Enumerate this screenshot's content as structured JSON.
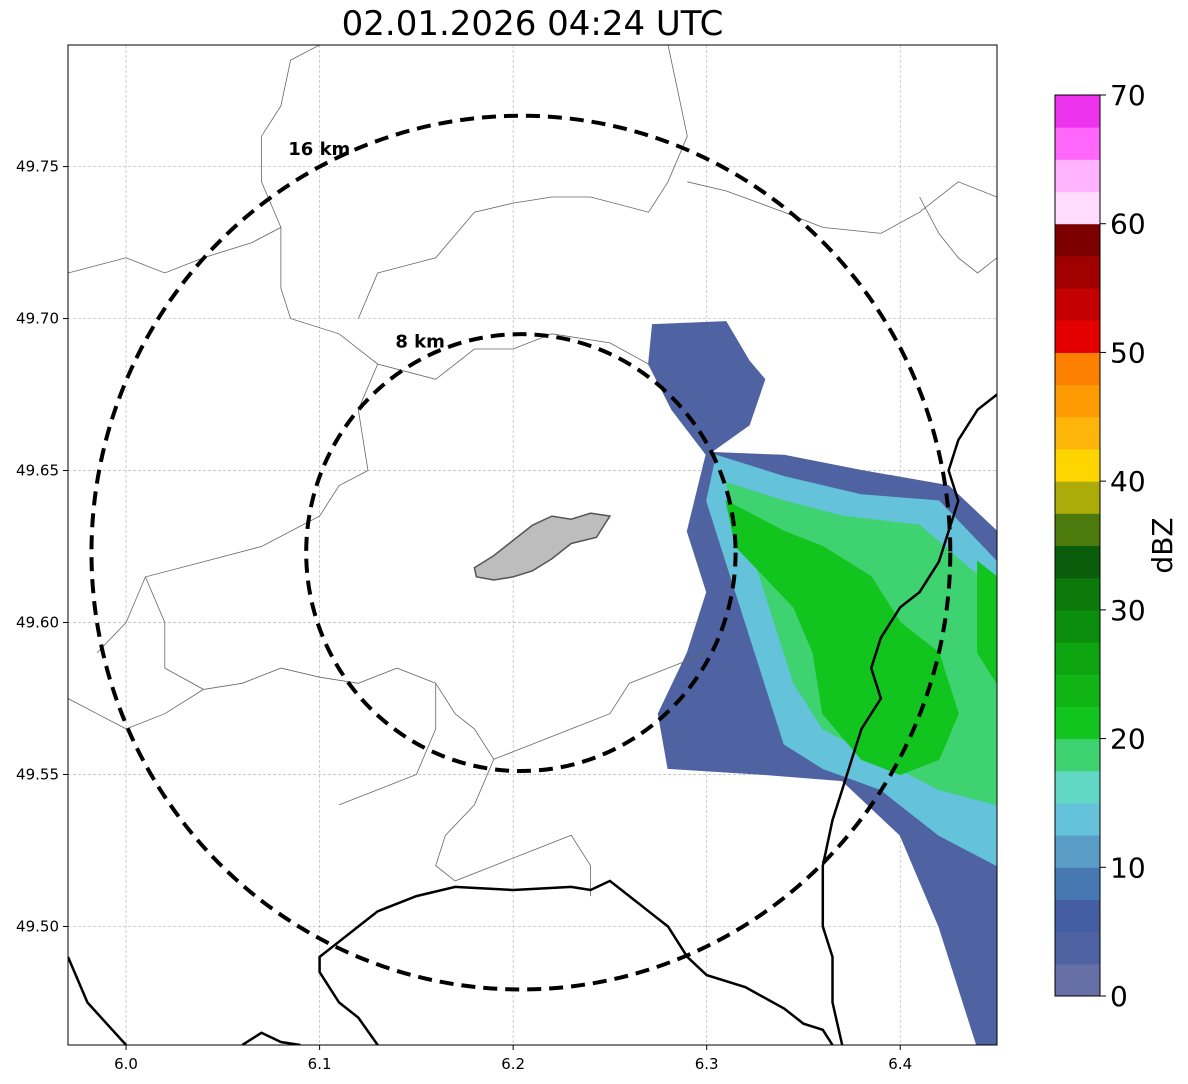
{
  "title": "02.01.2026 04:24 UTC",
  "map": {
    "lon_range": [
      5.97,
      6.45
    ],
    "lat_range": [
      49.461,
      49.79
    ],
    "x_ticks": [
      6.0,
      6.1,
      6.2,
      6.3,
      6.4
    ],
    "x_tick_labels": [
      "6.0",
      "6.1",
      "6.2",
      "6.3",
      "6.4"
    ],
    "y_ticks": [
      49.5,
      49.55,
      49.6,
      49.65,
      49.7,
      49.75
    ],
    "y_tick_labels": [
      "49.50",
      "49.55",
      "49.60",
      "49.65",
      "49.70",
      "49.75"
    ],
    "grid": true,
    "radar_center": [
      6.204,
      49.623
    ],
    "range_rings": [
      {
        "radius_km": 8,
        "label": "8 km"
      },
      {
        "radius_km": 16,
        "label": "16 km"
      }
    ]
  },
  "colorbar": {
    "label": "dBZ",
    "ticks": [
      0,
      10,
      20,
      30,
      40,
      50,
      60,
      70
    ],
    "tick_labels": [
      "0",
      "10",
      "20",
      "30",
      "40",
      "50",
      "60",
      "70"
    ],
    "range": [
      0,
      70
    ],
    "colors": [
      "#6670a6",
      "#4f63a2",
      "#435ea2",
      "#4878b2",
      "#5a9ec8",
      "#64c2da",
      "#60d8c4",
      "#3ed270",
      "#12c41e",
      "#10b414",
      "#0da50f",
      "#0b8e0d",
      "#0b7a0b",
      "#0a5d0a",
      "#4d7a0c",
      "#abab09",
      "#ffd500",
      "#fdb509",
      "#fd9a04",
      "#fd7f00",
      "#e50000",
      "#c50000",
      "#a00000",
      "#7d0000",
      "#ffdbfd",
      "#ffb3fd",
      "#ff66f9",
      "#ee33ee"
    ]
  },
  "echo_regions": [
    {
      "name": "north lobe",
      "dbz": 4,
      "poly": [
        [
          6.272,
          49.698
        ],
        [
          6.31,
          49.699
        ],
        [
          6.322,
          49.686
        ],
        [
          6.33,
          49.68
        ],
        [
          6.322,
          49.665
        ],
        [
          6.3,
          49.655
        ],
        [
          6.282,
          49.67
        ],
        [
          6.27,
          49.685
        ]
      ]
    },
    {
      "name": "main band",
      "dbz": 4,
      "poly": [
        [
          6.3,
          49.656
        ],
        [
          6.34,
          49.655
        ],
        [
          6.38,
          49.65
        ],
        [
          6.425,
          49.645
        ],
        [
          6.45,
          49.63
        ],
        [
          6.45,
          49.44
        ],
        [
          6.42,
          49.5
        ],
        [
          6.4,
          49.53
        ],
        [
          6.37,
          49.548
        ],
        [
          6.33,
          49.55
        ],
        [
          6.28,
          49.552
        ],
        [
          6.275,
          49.57
        ],
        [
          6.29,
          49.59
        ],
        [
          6.3,
          49.61
        ],
        [
          6.29,
          49.63
        ]
      ]
    },
    {
      "name": "main band",
      "dbz": 13,
      "poly": [
        [
          6.305,
          49.655
        ],
        [
          6.34,
          49.648
        ],
        [
          6.38,
          49.642
        ],
        [
          6.42,
          49.64
        ],
        [
          6.45,
          49.62
        ],
        [
          6.45,
          49.52
        ],
        [
          6.42,
          49.53
        ],
        [
          6.39,
          49.545
        ],
        [
          6.36,
          49.552
        ],
        [
          6.34,
          49.56
        ],
        [
          6.33,
          49.58
        ],
        [
          6.32,
          49.6
        ],
        [
          6.31,
          49.62
        ],
        [
          6.3,
          49.64
        ]
      ]
    },
    {
      "name": "main band",
      "dbz": 18,
      "poly": [
        [
          6.31,
          49.646
        ],
        [
          6.34,
          49.64
        ],
        [
          6.37,
          49.635
        ],
        [
          6.41,
          49.632
        ],
        [
          6.45,
          49.61
        ],
        [
          6.45,
          49.54
        ],
        [
          6.42,
          49.545
        ],
        [
          6.39,
          49.555
        ],
        [
          6.36,
          49.565
        ],
        [
          6.345,
          49.58
        ],
        [
          6.335,
          49.6
        ],
        [
          6.325,
          49.62
        ],
        [
          6.315,
          49.635
        ]
      ]
    },
    {
      "name": "main band",
      "dbz": 22,
      "poly": [
        [
          6.31,
          49.64
        ],
        [
          6.34,
          49.63
        ],
        [
          6.36,
          49.625
        ],
        [
          6.385,
          49.615
        ],
        [
          6.4,
          49.6
        ],
        [
          6.42,
          49.59
        ],
        [
          6.43,
          49.57
        ],
        [
          6.42,
          49.555
        ],
        [
          6.4,
          49.55
        ],
        [
          6.38,
          49.555
        ],
        [
          6.36,
          49.57
        ],
        [
          6.355,
          49.59
        ],
        [
          6.345,
          49.605
        ],
        [
          6.33,
          49.615
        ],
        [
          6.315,
          49.625
        ]
      ]
    },
    {
      "name": "east edge",
      "dbz": 20,
      "poly": [
        [
          6.44,
          49.62
        ],
        [
          6.45,
          49.615
        ],
        [
          6.45,
          49.58
        ],
        [
          6.44,
          49.59
        ]
      ]
    },
    {
      "name": "south tail",
      "dbz": 4,
      "poly": [
        [
          6.44,
          49.5
        ],
        [
          6.45,
          49.5
        ],
        [
          6.45,
          49.47
        ],
        [
          6.44,
          49.475
        ]
      ]
    }
  ],
  "city_shape": [
    [
      6.18,
      49.618
    ],
    [
      6.19,
      49.622
    ],
    [
      6.2,
      49.627
    ],
    [
      6.21,
      49.632
    ],
    [
      6.22,
      49.635
    ],
    [
      6.23,
      49.634
    ],
    [
      6.24,
      49.636
    ],
    [
      6.25,
      49.635
    ],
    [
      6.243,
      49.628
    ],
    [
      6.23,
      49.626
    ],
    [
      6.22,
      49.621
    ],
    [
      6.21,
      49.617
    ],
    [
      6.2,
      49.615
    ],
    [
      6.19,
      49.614
    ],
    [
      6.181,
      49.615
    ]
  ],
  "boundaries_thin": [
    [
      [
        6.1,
        49.79
      ],
      [
        6.085,
        49.785
      ],
      [
        6.08,
        49.77
      ],
      [
        6.07,
        49.76
      ],
      [
        6.07,
        49.745
      ],
      [
        6.08,
        49.73
      ],
      [
        6.065,
        49.725
      ],
      [
        6.04,
        49.72
      ],
      [
        6.02,
        49.715
      ],
      [
        6.0,
        49.72
      ],
      [
        5.97,
        49.715
      ]
    ],
    [
      [
        6.08,
        49.73
      ],
      [
        6.08,
        49.71
      ],
      [
        6.085,
        49.7
      ],
      [
        6.11,
        49.695
      ],
      [
        6.13,
        49.685
      ],
      [
        6.16,
        49.68
      ],
      [
        6.18,
        49.69
      ],
      [
        6.2,
        49.69
      ],
      [
        6.22,
        49.695
      ],
      [
        6.25,
        49.692
      ],
      [
        6.27,
        49.685
      ]
    ],
    [
      [
        6.28,
        49.79
      ],
      [
        6.285,
        49.775
      ],
      [
        6.29,
        49.76
      ],
      [
        6.28,
        49.745
      ],
      [
        6.27,
        49.735
      ],
      [
        6.24,
        49.74
      ],
      [
        6.22,
        49.74
      ],
      [
        6.2,
        49.738
      ],
      [
        6.18,
        49.735
      ],
      [
        6.16,
        49.72
      ],
      [
        6.13,
        49.715
      ],
      [
        6.12,
        49.7
      ]
    ],
    [
      [
        6.29,
        49.745
      ],
      [
        6.31,
        49.742
      ],
      [
        6.34,
        49.735
      ],
      [
        6.36,
        49.73
      ],
      [
        6.39,
        49.728
      ],
      [
        6.41,
        49.735
      ],
      [
        6.43,
        49.745
      ],
      [
        6.45,
        49.74
      ]
    ],
    [
      [
        6.45,
        49.72
      ],
      [
        6.44,
        49.715
      ],
      [
        6.43,
        49.72
      ],
      [
        6.42,
        49.728
      ],
      [
        6.41,
        49.74
      ]
    ],
    [
      [
        6.13,
        49.685
      ],
      [
        6.12,
        49.67
      ],
      [
        6.125,
        49.65
      ],
      [
        6.11,
        49.645
      ],
      [
        6.1,
        49.635
      ],
      [
        6.07,
        49.625
      ],
      [
        6.04,
        49.62
      ],
      [
        6.01,
        49.615
      ],
      [
        6.0,
        49.6
      ],
      [
        5.985,
        49.59
      ]
    ],
    [
      [
        6.01,
        49.615
      ],
      [
        6.02,
        49.6
      ],
      [
        6.02,
        49.585
      ],
      [
        6.04,
        49.578
      ],
      [
        6.06,
        49.58
      ],
      [
        6.08,
        49.585
      ],
      [
        6.1,
        49.582
      ],
      [
        6.12,
        49.58
      ],
      [
        6.14,
        49.585
      ],
      [
        6.16,
        49.58
      ]
    ],
    [
      [
        6.16,
        49.58
      ],
      [
        6.17,
        49.57
      ],
      [
        6.18,
        49.565
      ],
      [
        6.19,
        49.555
      ],
      [
        6.18,
        49.54
      ],
      [
        6.165,
        49.53
      ],
      [
        6.16,
        49.52
      ],
      [
        6.17,
        49.515
      ],
      [
        6.19,
        49.52
      ],
      [
        6.21,
        49.525
      ],
      [
        6.23,
        49.53
      ],
      [
        6.24,
        49.52
      ],
      [
        6.24,
        49.51
      ]
    ],
    [
      [
        6.19,
        49.555
      ],
      [
        6.21,
        49.56
      ],
      [
        6.23,
        49.565
      ],
      [
        6.25,
        49.57
      ],
      [
        6.26,
        49.58
      ],
      [
        6.28,
        49.585
      ],
      [
        6.3,
        49.59
      ]
    ],
    [
      [
        6.16,
        49.58
      ],
      [
        6.16,
        49.565
      ],
      [
        6.15,
        49.55
      ],
      [
        6.13,
        49.545
      ],
      [
        6.11,
        49.54
      ]
    ],
    [
      [
        6.04,
        49.578
      ],
      [
        6.02,
        49.57
      ],
      [
        6.0,
        49.565
      ],
      [
        5.985,
        49.57
      ],
      [
        5.97,
        49.575
      ]
    ]
  ],
  "boundaries_thick": [
    [
      [
        6.45,
        49.675
      ],
      [
        6.44,
        49.67
      ],
      [
        6.43,
        49.66
      ],
      [
        6.425,
        49.65
      ],
      [
        6.43,
        49.64
      ],
      [
        6.425,
        49.63
      ],
      [
        6.42,
        49.62
      ],
      [
        6.41,
        49.61
      ],
      [
        6.4,
        49.605
      ],
      [
        6.39,
        49.595
      ],
      [
        6.385,
        49.585
      ],
      [
        6.39,
        49.575
      ],
      [
        6.38,
        49.565
      ],
      [
        6.375,
        49.555
      ],
      [
        6.37,
        49.545
      ],
      [
        6.365,
        49.535
      ],
      [
        6.36,
        49.52
      ],
      [
        6.36,
        49.5
      ],
      [
        6.365,
        49.49
      ],
      [
        6.365,
        49.475
      ],
      [
        6.37,
        49.461
      ]
    ],
    [
      [
        6.13,
        49.461
      ],
      [
        6.12,
        49.47
      ],
      [
        6.11,
        49.475
      ],
      [
        6.1,
        49.485
      ],
      [
        6.1,
        49.49
      ],
      [
        6.11,
        49.495
      ],
      [
        6.12,
        49.5
      ],
      [
        6.13,
        49.505
      ],
      [
        6.15,
        49.51
      ],
      [
        6.17,
        49.513
      ],
      [
        6.2,
        49.512
      ],
      [
        6.23,
        49.513
      ],
      [
        6.24,
        49.512
      ],
      [
        6.25,
        49.515
      ],
      [
        6.26,
        49.51
      ],
      [
        6.27,
        49.505
      ],
      [
        6.28,
        49.5
      ],
      [
        6.29,
        49.49
      ],
      [
        6.3,
        49.484
      ],
      [
        6.32,
        49.48
      ],
      [
        6.34,
        49.473
      ],
      [
        6.35,
        49.468
      ],
      [
        6.36,
        49.466
      ],
      [
        6.365,
        49.461
      ]
    ],
    [
      [
        5.97,
        49.49
      ],
      [
        5.98,
        49.475
      ],
      [
        5.99,
        49.468
      ],
      [
        6.0,
        49.461
      ]
    ],
    [
      [
        6.06,
        49.461
      ],
      [
        6.07,
        49.465
      ],
      [
        6.08,
        49.462
      ],
      [
        6.09,
        49.461
      ]
    ]
  ]
}
